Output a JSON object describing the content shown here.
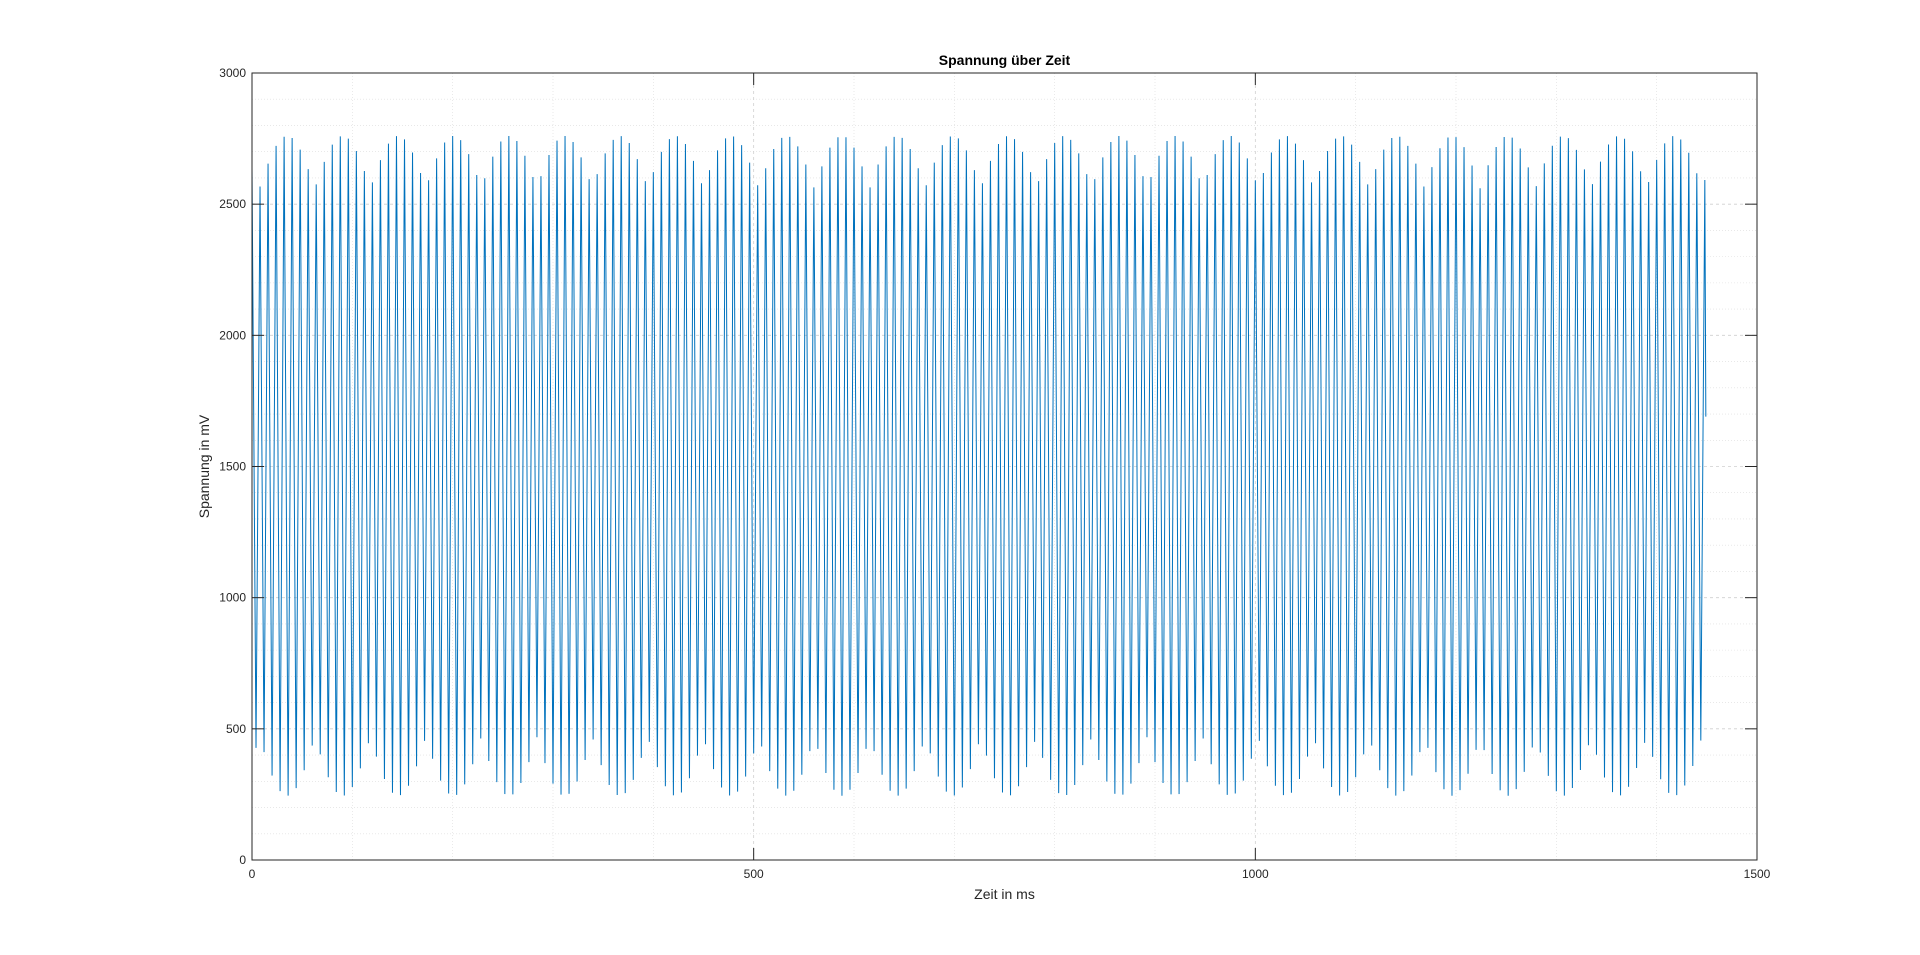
{
  "chart_data": {
    "type": "line",
    "title": "Spannung über Zeit",
    "xlabel": "Zeit in ms",
    "ylabel": "Spannung in mV",
    "xlim": [
      0,
      1500
    ],
    "ylim": [
      0,
      3000
    ],
    "xticks": [
      0,
      500,
      1000,
      1500
    ],
    "xtick_labels": [
      "0",
      "500",
      "1000",
      "1500"
    ],
    "yticks": [
      0,
      500,
      1000,
      1500,
      2000,
      2500,
      3000
    ],
    "ytick_labels": [
      "0",
      "500",
      "1000",
      "1500",
      "2000",
      "2500",
      "3000"
    ],
    "x_minor_step": 100,
    "y_minor_step": 100,
    "grid": true,
    "minor_grid": true,
    "legend": "none",
    "series_color": "#0072BD",
    "axis_color": "#262626",
    "grid_color": "#dcdcdc",
    "series": [
      {
        "x_start": 0,
        "x_end": 1449,
        "carrier_period_ms": 8,
        "beat_period_ms": 110.6,
        "beat_phase_ms": 35,
        "envelope_max": 2760,
        "envelope_min_peak": 2560,
        "trough_min": 245,
        "trough_max_at_node": 470,
        "final_value": 1690
      }
    ]
  }
}
